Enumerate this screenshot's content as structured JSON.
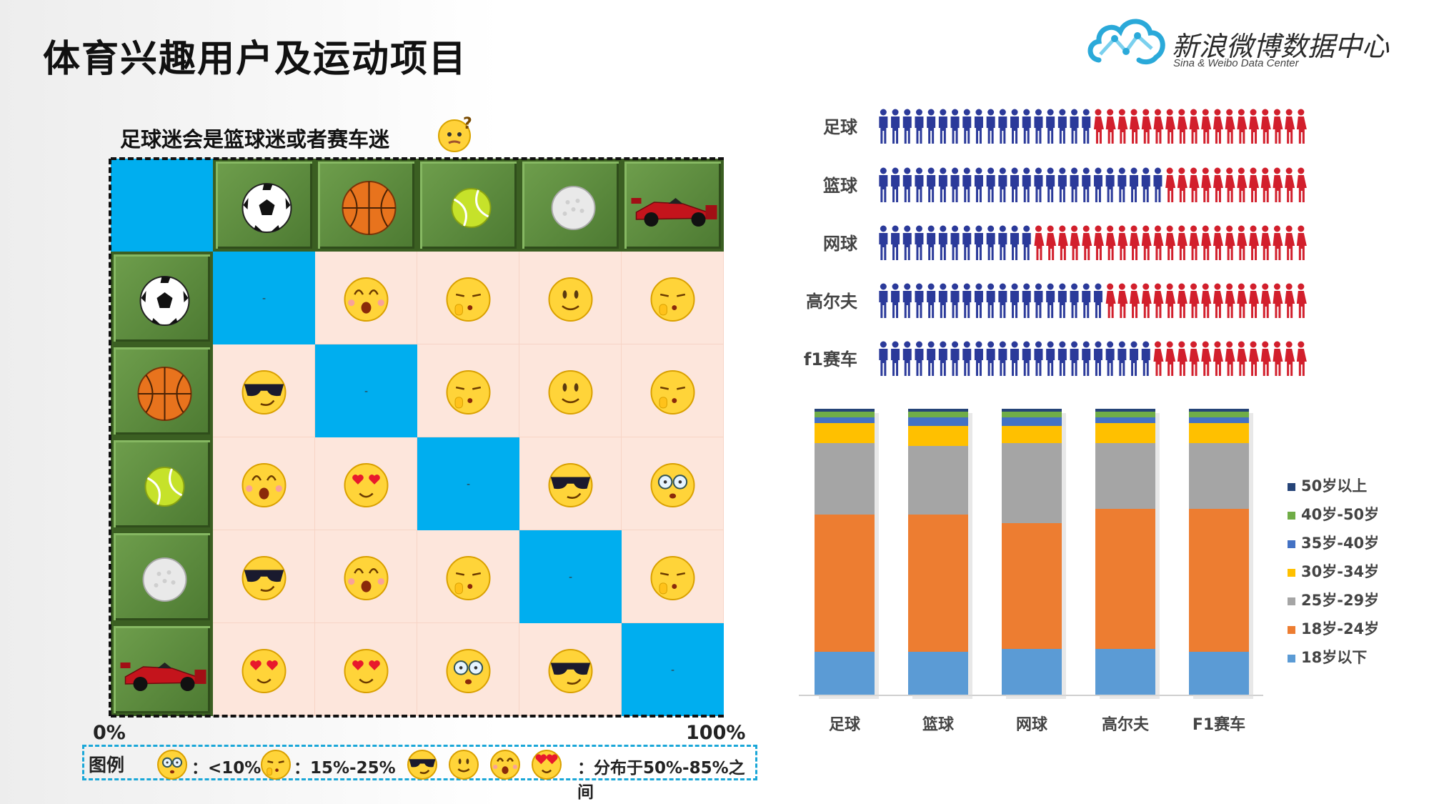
{
  "header": {
    "title": "体育兴趣用户及运动项目",
    "logo_text": "新浪微博数据中心",
    "logo_sub": "Sina & Weibo Data Center"
  },
  "matrix": {
    "caption": "足球迷会是篮球迷或者赛车迷",
    "sports": [
      "soccer-ball",
      "basketball",
      "tennis-ball",
      "golf-ball",
      "f1-car"
    ],
    "diag_marker": "-",
    "cells": [
      [
        "-",
        "excited",
        "shh",
        "smile",
        "shh"
      ],
      [
        "cool",
        "-",
        "shh",
        "smile",
        "shh"
      ],
      [
        "excited",
        "hearts",
        "-",
        "cool",
        "glasses"
      ],
      [
        "cool",
        "excited",
        "shh",
        "-",
        "shh"
      ],
      [
        "hearts",
        "hearts",
        "glasses",
        "cool",
        "-"
      ]
    ],
    "axis_start": "0%",
    "axis_end": "100%"
  },
  "legend": {
    "title": "图例",
    "lt10": "：<10%",
    "mid": "：15%-25%",
    "high": "：分布于50%-85%之间"
  },
  "chart_data": [
    {
      "type": "pictogram",
      "categories": [
        "足球",
        "篮球",
        "网球",
        "高尔夫",
        "f1赛车"
      ],
      "series": [
        {
          "values": [
            0.51,
            0.67,
            0.37,
            0.54,
            0.65
          ]
        },
        {
          "values": [
            0.49,
            0.33,
            0.63,
            0.46,
            0.35
          ]
        }
      ],
      "colors": [
        "#2b3a9a",
        "#d21f2c"
      ]
    },
    {
      "type": "bar",
      "stacked": true,
      "categories": [
        "足球",
        "篮球",
        "网球",
        "高尔夫",
        "F1赛车"
      ],
      "ylim": [
        0,
        100
      ],
      "series": [
        {
          "name": "18岁以下",
          "color": "#5b9bd5",
          "values": [
            15,
            15,
            16,
            16,
            15
          ]
        },
        {
          "name": "18岁-24岁",
          "color": "#ed7d31",
          "values": [
            48,
            48,
            44,
            49,
            50
          ]
        },
        {
          "name": "25岁-29岁",
          "color": "#a5a5a5",
          "values": [
            25,
            24,
            28,
            23,
            23
          ]
        },
        {
          "name": "30岁-34岁",
          "color": "#ffc000",
          "values": [
            7,
            7,
            6,
            7,
            7
          ]
        },
        {
          "name": "35岁-40岁",
          "color": "#4472c4",
          "values": [
            2,
            3,
            3,
            2,
            2
          ]
        },
        {
          "name": "40岁-50岁",
          "color": "#70ad47",
          "values": [
            2,
            2,
            2,
            2,
            2
          ]
        },
        {
          "name": "50岁以上",
          "color": "#264478",
          "values": [
            1,
            1,
            1,
            1,
            1
          ]
        }
      ],
      "legend_position": "right"
    }
  ]
}
